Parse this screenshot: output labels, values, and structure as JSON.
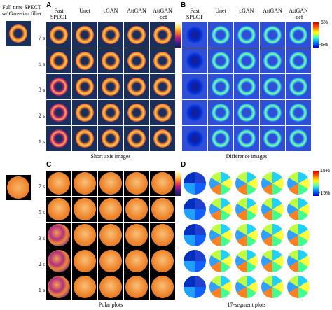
{
  "left_title": [
    "Full time SPECT",
    "w/ Gaussian filter"
  ],
  "panels": {
    "A": {
      "letter": "A",
      "caption": "Short axis images"
    },
    "B": {
      "letter": "B",
      "caption": "Difference images"
    },
    "C": {
      "letter": "C",
      "caption": "Polar plots"
    },
    "D": {
      "letter": "D",
      "caption": "17-segment plots"
    }
  },
  "columns": [
    [
      "Fast",
      "SPECT"
    ],
    [
      "Unet",
      ""
    ],
    [
      "cGAN",
      ""
    ],
    [
      "AttGAN",
      ""
    ],
    [
      "AttGAN",
      "-def"
    ]
  ],
  "rows": [
    "7 s",
    "5 s",
    "3 s",
    "2 s",
    "1 s"
  ],
  "colorbar_B": {
    "top": "5%",
    "bottom": "-5%"
  },
  "colorbar_D": {
    "top": "15%",
    "bottom": "-15%"
  },
  "colors": {
    "short_axis_bg": "#1a2f5c",
    "difference_bg": "#2e4fd6",
    "polar": "#e8843a",
    "jet_low": "#0000c8",
    "jet_high": "#c80000"
  }
}
